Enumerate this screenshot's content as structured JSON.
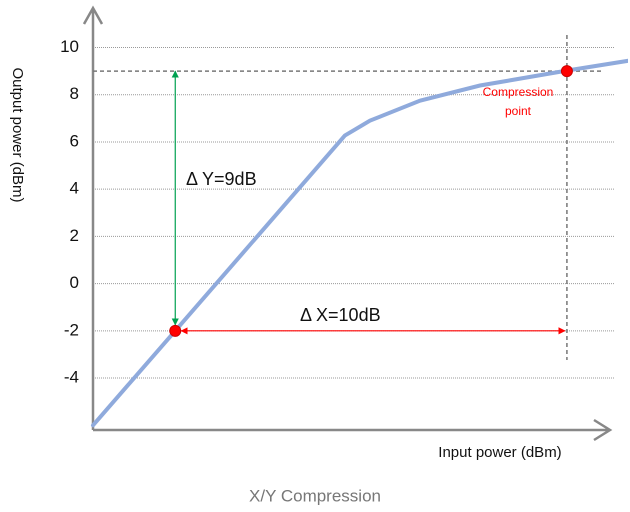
{
  "chart_data": {
    "type": "line",
    "title": "X/Y Compression",
    "xlabel": "Input power (dBm)",
    "ylabel": "Output power (dBm)",
    "x": [
      0,
      2.1,
      6.43,
      7.07,
      8.35,
      9.88,
      12.13,
      13.71
    ],
    "values": [
      -6.0,
      -2.0,
      6.27,
      6.9,
      7.75,
      8.39,
      9.03,
      9.45
    ],
    "color": "#8faadc",
    "points": [
      {
        "x": 2.1,
        "y": -2
      },
      {
        "x": 12.1,
        "y": 9
      }
    ],
    "point_color": "#ff0000",
    "xlim": [
      0,
      13.2
    ],
    "ylim": [
      -6.2,
      11.8
    ],
    "yticks": [
      -4,
      -2,
      0,
      2,
      4,
      6,
      8,
      10
    ],
    "grid": true,
    "annotations": {
      "delta_y": "Δ Y=9dB",
      "delta_x": "Δ X=10dB",
      "compression": [
        "Compression",
        "point"
      ]
    },
    "delta_y_color": "#00a050",
    "delta_x_color": "#ff0000"
  }
}
